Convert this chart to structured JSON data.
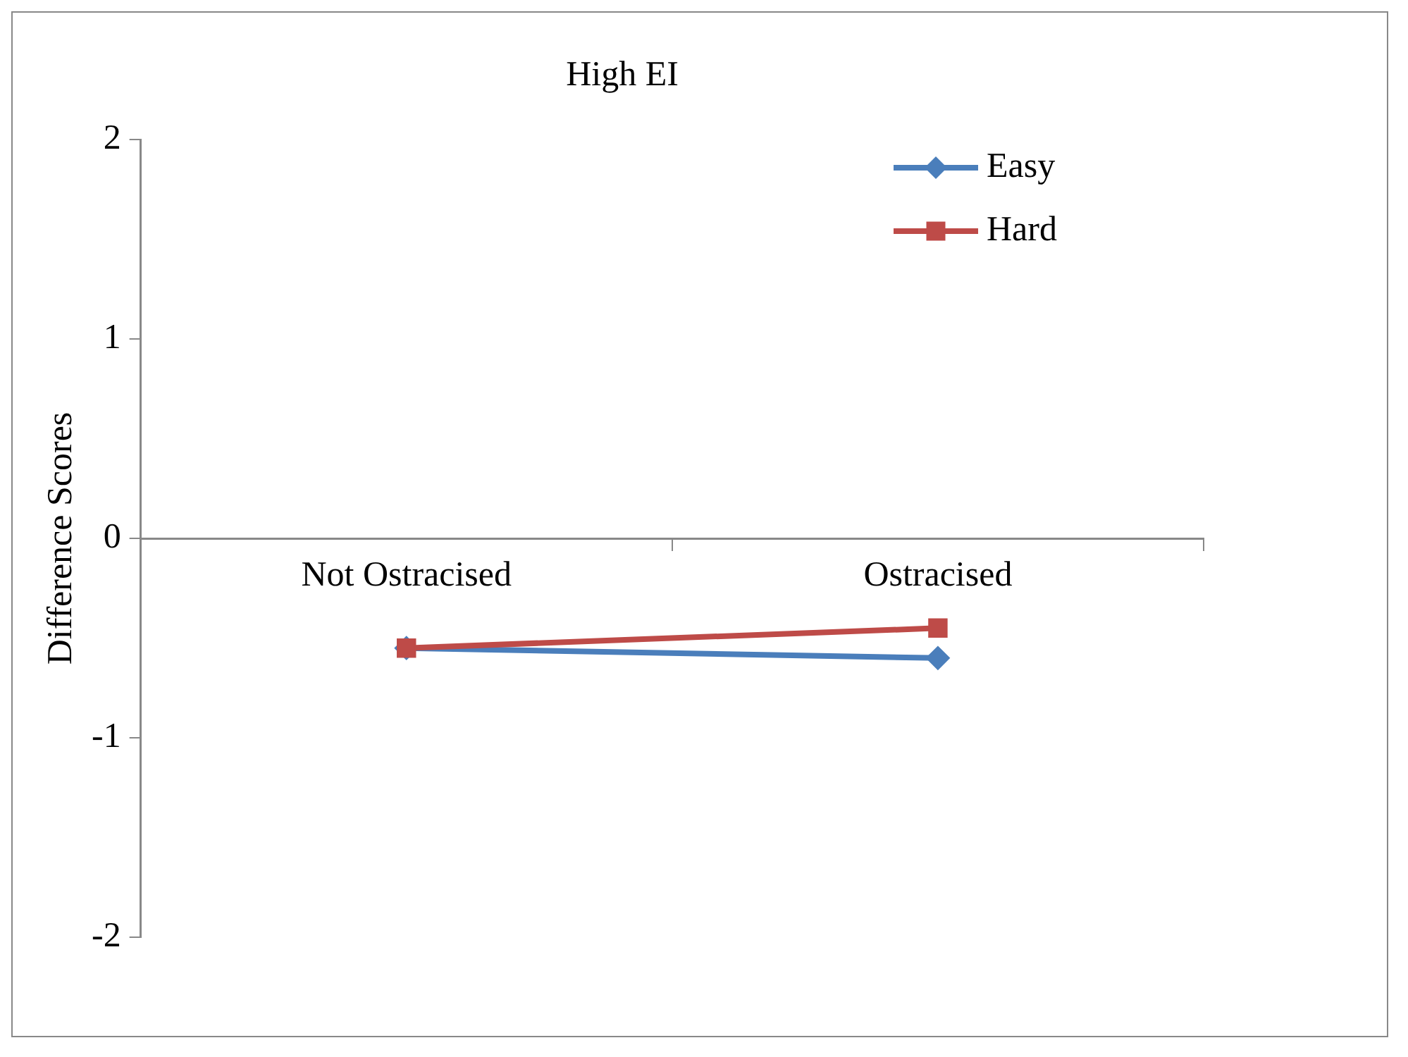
{
  "chart_data": {
    "type": "line",
    "title": "High EI",
    "ylabel": "Difference Scores",
    "categories": [
      "Not Ostracised",
      "Ostracised"
    ],
    "series": [
      {
        "name": "Easy",
        "color": "#4a7ebb",
        "values": [
          -0.55,
          -0.6
        ],
        "marker": "diamond"
      },
      {
        "name": "Hard",
        "color": "#be4b48",
        "values": [
          -0.55,
          -0.45
        ],
        "marker": "square"
      }
    ],
    "ylim": [
      -2,
      2
    ],
    "yticks": [
      -2,
      -1,
      0,
      1,
      2
    ],
    "grid": false,
    "legend": "top right"
  }
}
